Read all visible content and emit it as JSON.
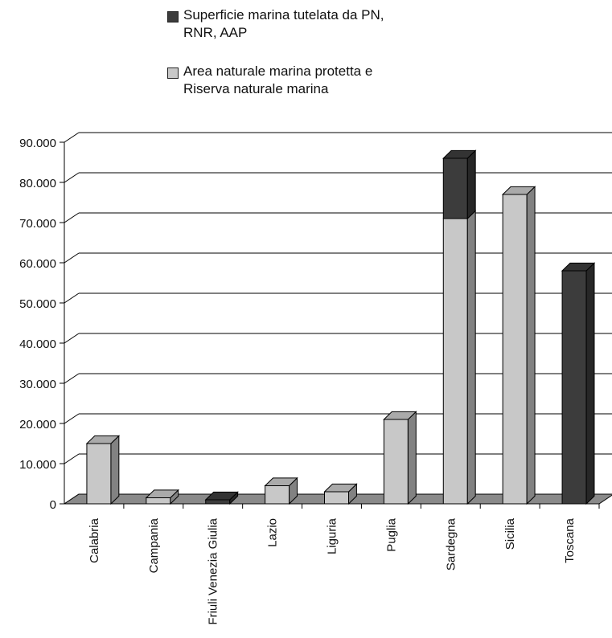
{
  "chart_data": {
    "type": "bar",
    "stacked": true,
    "three_d": true,
    "categories": [
      "Calabria",
      "Campania",
      "Friuli Venezia Giulia",
      "Lazio",
      "Liguria",
      "Puglia",
      "Sardegna",
      "Sicilia",
      "Toscana"
    ],
    "series": [
      {
        "name": "Area naturale marina protetta e Riserva naturale marina",
        "color": "#c8c8c8",
        "values": [
          15000,
          1500,
          0,
          4500,
          3000,
          21000,
          71000,
          77000,
          0
        ]
      },
      {
        "name": "Superficie marina tutelata da PN, RNR, AAP",
        "color": "#3c3c3c",
        "values": [
          0,
          0,
          1000,
          0,
          0,
          0,
          15000,
          0,
          58000
        ]
      }
    ],
    "ylim": [
      0,
      90000
    ],
    "yticks": [
      "0",
      "10.000",
      "20.000",
      "30.000",
      "40.000",
      "50.000",
      "60.000",
      "70.000",
      "80.000",
      "90.000"
    ],
    "grid": true,
    "legend_position": "top",
    "title": "",
    "xlabel": "",
    "ylabel": ""
  },
  "legend": [
    {
      "label_line1": "Superficie marina tutelata da PN,",
      "label_line2": "RNR, AAP",
      "color": "#3c3c3c"
    },
    {
      "label_line1": "Area naturale marina protetta e",
      "label_line2": "Riserva naturale marina",
      "color": "#c8c8c8"
    }
  ]
}
